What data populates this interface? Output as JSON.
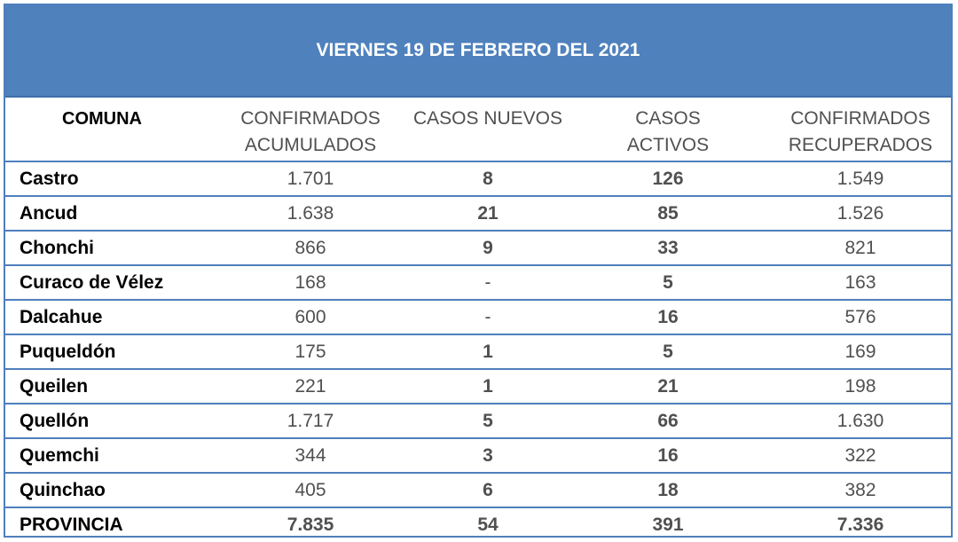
{
  "title": "VIERNES 19 DE FEBRERO DEL 2021",
  "headers": {
    "comuna": "COMUNA",
    "confirmados_acumulados": [
      "CONFIRMADOS",
      "ACUMULADOS"
    ],
    "casos_nuevos": "CASOS NUEVOS",
    "casos_activos": [
      "CASOS",
      "ACTIVOS"
    ],
    "confirmados_recuperados": [
      "CONFIRMADOS",
      "RECUPERADOS"
    ]
  },
  "rows": [
    {
      "comuna": "Castro",
      "acumulados": "1.701",
      "nuevos": "8",
      "activos": "126",
      "recuperados": "1.549"
    },
    {
      "comuna": "Ancud",
      "acumulados": "1.638",
      "nuevos": "21",
      "activos": "85",
      "recuperados": "1.526"
    },
    {
      "comuna": "Chonchi",
      "acumulados": "866",
      "nuevos": "9",
      "activos": "33",
      "recuperados": "821"
    },
    {
      "comuna": "Curaco de Vélez",
      "acumulados": "168",
      "nuevos": "-",
      "activos": "5",
      "recuperados": "163"
    },
    {
      "comuna": "Dalcahue",
      "acumulados": "600",
      "nuevos": "-",
      "activos": "16",
      "recuperados": "576"
    },
    {
      "comuna": "Puqueldón",
      "acumulados": "175",
      "nuevos": "1",
      "activos": "5",
      "recuperados": "169"
    },
    {
      "comuna": "Queilen",
      "acumulados": "221",
      "nuevos": "1",
      "activos": "21",
      "recuperados": "198"
    },
    {
      "comuna": "Quellón",
      "acumulados": "1.717",
      "nuevos": "5",
      "activos": "66",
      "recuperados": "1.630"
    },
    {
      "comuna": "Quemchi",
      "acumulados": "344",
      "nuevos": "3",
      "activos": "16",
      "recuperados": "322"
    },
    {
      "comuna": "Quinchao",
      "acumulados": "405",
      "nuevos": "6",
      "activos": "18",
      "recuperados": "382"
    }
  ],
  "total": {
    "comuna": "PROVINCIA",
    "acumulados": "7.835",
    "nuevos": "54",
    "activos": "391",
    "recuperados": "7.336"
  },
  "colors": {
    "header_bg": "#4f81bd",
    "border": "#4f7fbd",
    "header_text": "#ffffff"
  }
}
